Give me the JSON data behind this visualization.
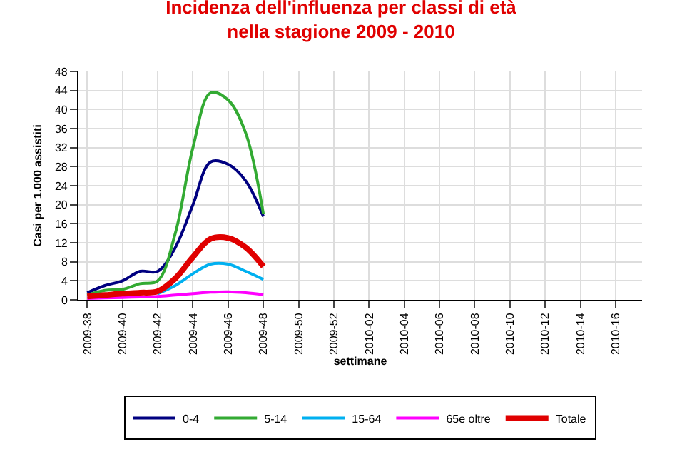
{
  "chart_data": {
    "type": "line",
    "title": "Incidenza dell'influenza per classi di età\nnella stagione 2009 - 2010",
    "xlabel": "settimane",
    "ylabel": "Casi per 1.000 assistiti",
    "categories": [
      "2009-38",
      null,
      "2009-40",
      null,
      "2009-42",
      null,
      "2009-44",
      null,
      "2009-46",
      null,
      "2009-48",
      null,
      "2009-50",
      null,
      "2009-52",
      null,
      "2010-02",
      null,
      "2010-04",
      null,
      "2010-06",
      null,
      "2010-08",
      null,
      "2010-10",
      null,
      "2010-12",
      null,
      "2010-14",
      null,
      "2010-16",
      null
    ],
    "series": [
      {
        "name": "0-4",
        "color": "#000080",
        "values": [
          1.5,
          3,
          4,
          6,
          6,
          11,
          20,
          29,
          28.5,
          25,
          17.5,
          null,
          null,
          null,
          null,
          null,
          null,
          null,
          null,
          null,
          null,
          null,
          null,
          null,
          null,
          null,
          null,
          null,
          null,
          null,
          null,
          null
        ]
      },
      {
        "name": "5-14",
        "color": "#33aa33",
        "values": [
          1,
          2,
          2.2,
          3.4,
          4,
          14,
          32,
          43.5,
          42,
          35,
          18,
          null,
          null,
          null,
          null,
          null,
          null,
          null,
          null,
          null,
          null,
          null,
          null,
          null,
          null,
          null,
          null,
          null,
          null,
          null,
          null,
          null
        ]
      },
      {
        "name": "15-64",
        "color": "#00b0f0",
        "values": [
          null,
          null,
          null,
          null,
          1.3,
          3,
          5.5,
          7.5,
          7.5,
          6,
          4.3,
          null,
          null,
          null,
          null,
          null,
          null,
          null,
          null,
          null,
          null,
          null,
          null,
          null,
          null,
          null,
          null,
          null,
          null,
          null,
          null,
          null
        ]
      },
      {
        "name": "65e oltre",
        "color": "#ff00ff",
        "values": [
          0.3,
          0.4,
          0.5,
          0.6,
          0.7,
          1,
          1.3,
          1.6,
          1.7,
          1.5,
          1.1,
          null,
          null,
          null,
          null,
          null,
          null,
          null,
          null,
          null,
          null,
          null,
          null,
          null,
          null,
          null,
          null,
          null,
          null,
          null,
          null,
          null
        ]
      },
      {
        "name": "Totale",
        "color": "#e00000",
        "values": [
          0.7,
          1,
          1.3,
          1.5,
          1.8,
          4.5,
          9,
          12.8,
          13,
          11,
          7,
          null,
          null,
          null,
          null,
          null,
          null,
          null,
          null,
          null,
          null,
          null,
          null,
          null,
          null,
          null,
          null,
          null,
          null,
          null,
          null,
          null
        ]
      }
    ],
    "ylim": [
      0,
      48
    ],
    "yticks": [
      0,
      4,
      8,
      12,
      16,
      20,
      24,
      28,
      32,
      36,
      40,
      44,
      48
    ],
    "grid": true,
    "legend": "bottom",
    "marker": "none",
    "line_style": "solid"
  }
}
